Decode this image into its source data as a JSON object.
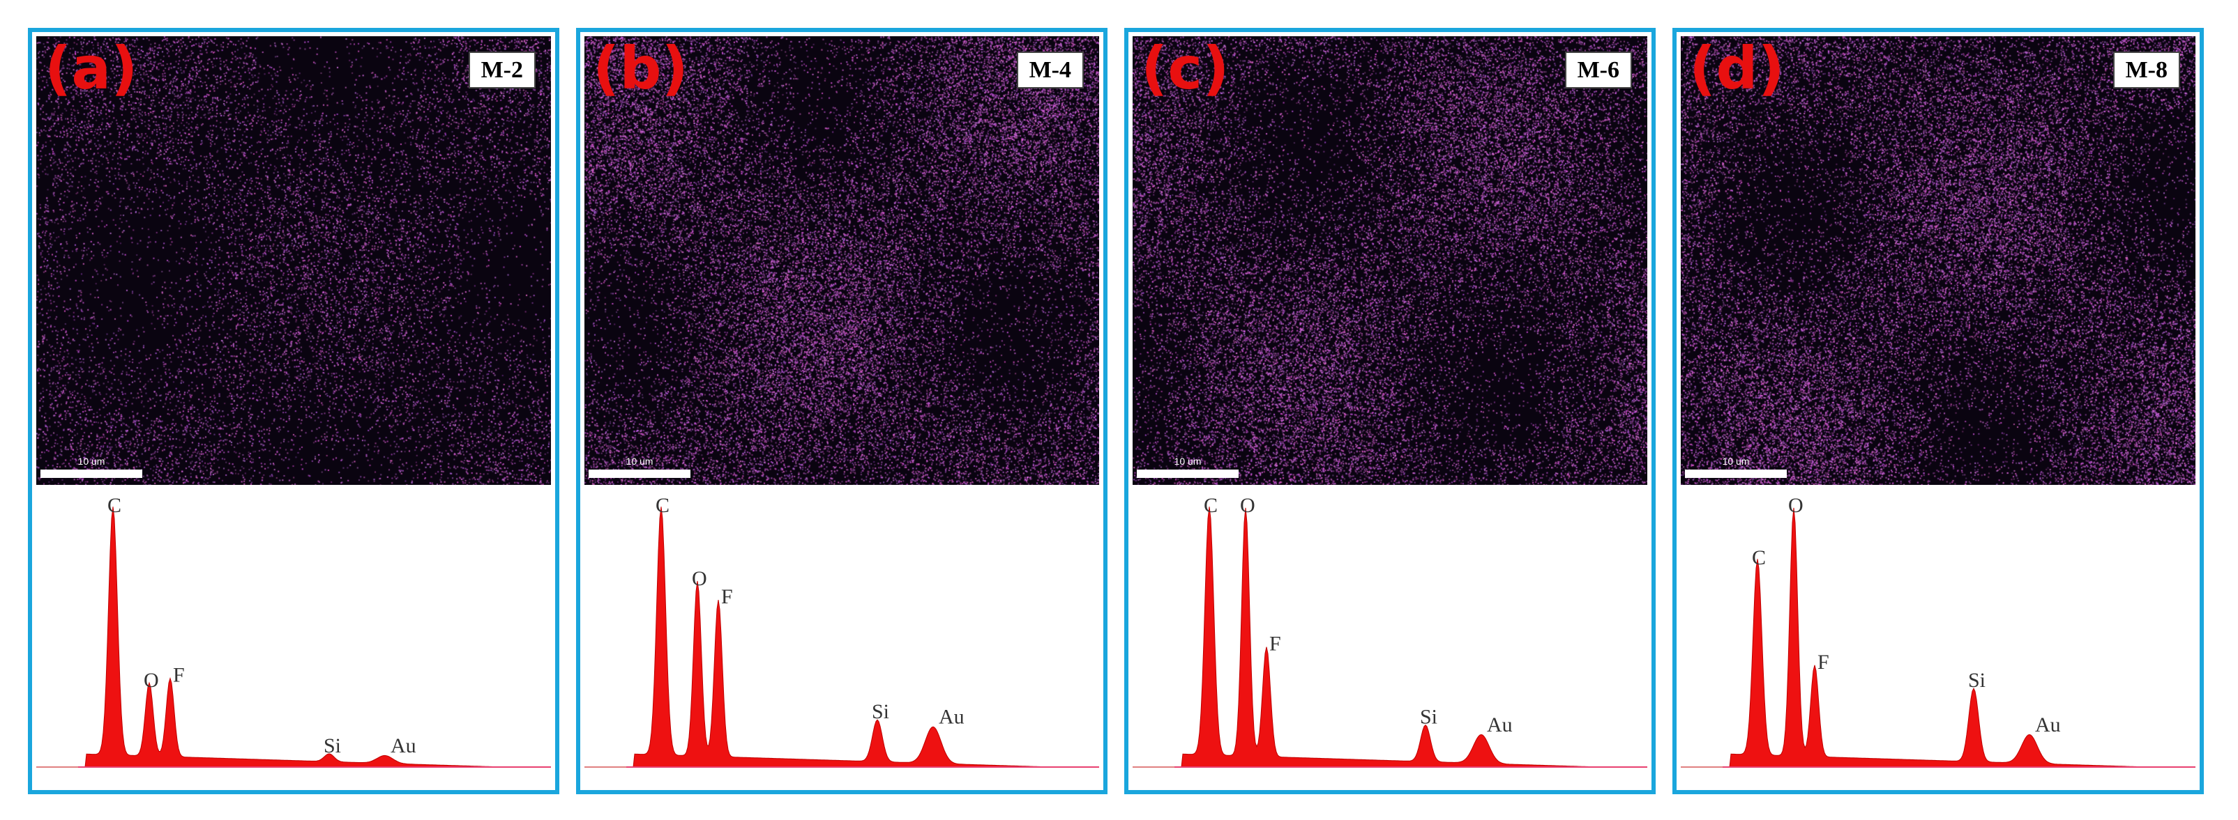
{
  "panels": [
    {
      "letter": "(a)",
      "sample": "M-2",
      "scale_label": "10 um",
      "map_intensity": 0.35,
      "peaks": [
        {
          "label": "C",
          "height": 0.95
        },
        {
          "label": "O",
          "height": 0.28
        },
        {
          "label": "F",
          "height": 0.3
        },
        {
          "label": "Si",
          "height": 0.03
        },
        {
          "label": "Au",
          "height": 0.03
        }
      ]
    },
    {
      "letter": "(b)",
      "sample": "M-4",
      "scale_label": "10 um",
      "map_intensity": 0.75,
      "peaks": [
        {
          "label": "C",
          "height": 0.95
        },
        {
          "label": "O",
          "height": 0.67
        },
        {
          "label": "F",
          "height": 0.6
        },
        {
          "label": "Si",
          "height": 0.16
        },
        {
          "label": "Au",
          "height": 0.14
        }
      ]
    },
    {
      "letter": "(c)",
      "sample": "M-6",
      "scale_label": "10 um",
      "map_intensity": 0.7,
      "peaks": [
        {
          "label": "C",
          "height": 0.95
        },
        {
          "label": "O",
          "height": 0.95
        },
        {
          "label": "F",
          "height": 0.42
        },
        {
          "label": "Si",
          "height": 0.14
        },
        {
          "label": "Au",
          "height": 0.11
        }
      ]
    },
    {
      "letter": "(d)",
      "sample": "M-8",
      "scale_label": "10 um",
      "map_intensity": 0.75,
      "peaks": [
        {
          "label": "C",
          "height": 0.75
        },
        {
          "label": "O",
          "height": 0.95
        },
        {
          "label": "F",
          "height": 0.35
        },
        {
          "label": "Si",
          "height": 0.28
        },
        {
          "label": "Au",
          "height": 0.11
        }
      ]
    }
  ],
  "colors": {
    "border": "#1aa6dd",
    "letter": "#e81010",
    "spectrum_fill": "#ee1111",
    "map_pixel": "#c060d0"
  }
}
